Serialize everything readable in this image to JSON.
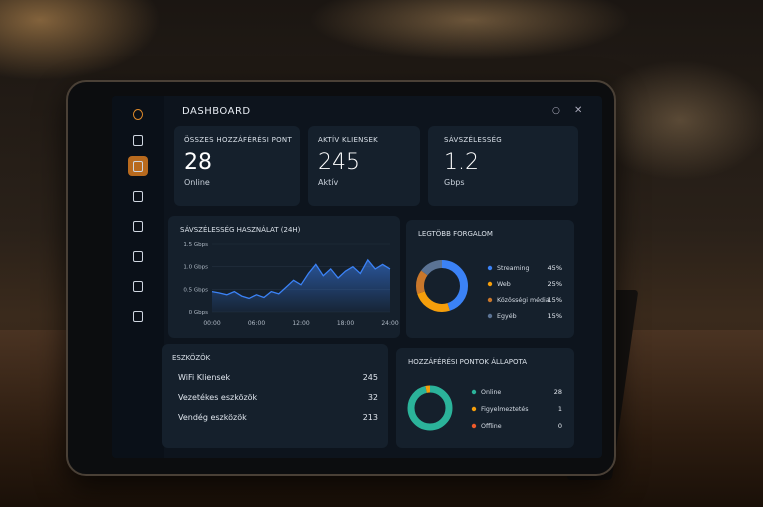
{
  "header": {
    "title": "DASHBOARD"
  },
  "stats": [
    {
      "title": "ÖSSZES HOZZÁFÉRÉSI PONT",
      "value": 28,
      "unit": "Online"
    },
    {
      "title": "AKTÍV KLIENSEK",
      "value": 245,
      "unit": "Aktív"
    },
    {
      "title": "SÁVSZÉLESSÉG",
      "value": 1.2,
      "unit": "Gbps"
    }
  ],
  "bandwidth_chart": {
    "type": "line",
    "title": "SÁVSZÉLESSÉG HASZNÁLAT (24H)",
    "x": [
      0,
      1,
      2,
      3,
      4,
      5,
      6,
      7,
      8,
      9,
      10,
      11,
      12,
      13,
      14,
      15,
      16,
      17,
      18,
      19,
      20,
      21,
      22,
      23,
      24
    ],
    "values": [
      0.45,
      0.42,
      0.38,
      0.45,
      0.35,
      0.3,
      0.38,
      0.32,
      0.45,
      0.4,
      0.55,
      0.7,
      0.6,
      0.85,
      1.05,
      0.8,
      0.95,
      0.75,
      0.9,
      1.0,
      0.85,
      1.15,
      0.95,
      1.05,
      0.95
    ],
    "color": "#3b82f6",
    "xlim": [
      0,
      24
    ],
    "ylim": [
      0,
      1.5
    ],
    "xticks": [
      {
        "value": 0,
        "label": "00:00"
      },
      {
        "value": 6,
        "label": "06:00"
      },
      {
        "value": 12,
        "label": "12:00"
      },
      {
        "value": 18,
        "label": "18:00"
      },
      {
        "value": 24,
        "label": "24:00"
      }
    ],
    "yticks": [
      {
        "value": 0,
        "label": "0 Gbps"
      },
      {
        "value": 0.5,
        "label": "0.5 Gbps"
      },
      {
        "value": 1.0,
        "label": "1.0 Gbps"
      },
      {
        "value": 1.5,
        "label": "1.5 Gbps"
      }
    ],
    "grid": true
  },
  "top_traffic": {
    "type": "pie",
    "title": "LEGTÖBB FORGALOM",
    "categories": [
      "Streaming",
      "Web",
      "Közösségi média",
      "Egyéb"
    ],
    "values": [
      45,
      25,
      15,
      15
    ],
    "value_labels": [
      "45%",
      "25%",
      "15%",
      "15%"
    ],
    "colors": [
      "#3b82f6",
      "#f59e0b",
      "#c9772b",
      "#5b7394"
    ]
  },
  "devices": {
    "title": "ESZKÖZÖK",
    "rows": [
      {
        "label": "WiFi Kliensek",
        "value": 245
      },
      {
        "label": "Vezetékes eszközök",
        "value": 32
      },
      {
        "label": "Vendég eszközök",
        "value": 213
      }
    ]
  },
  "ap_status": {
    "type": "pie",
    "title": "HOZZÁFÉRÉSI PONTOK ÁLLAPOTA",
    "categories": [
      "Online",
      "Figyelmeztetés",
      "Offline"
    ],
    "values": [
      28,
      1,
      0
    ],
    "colors": [
      "#2bb39a",
      "#f59e0b",
      "#ef5a2a"
    ]
  }
}
